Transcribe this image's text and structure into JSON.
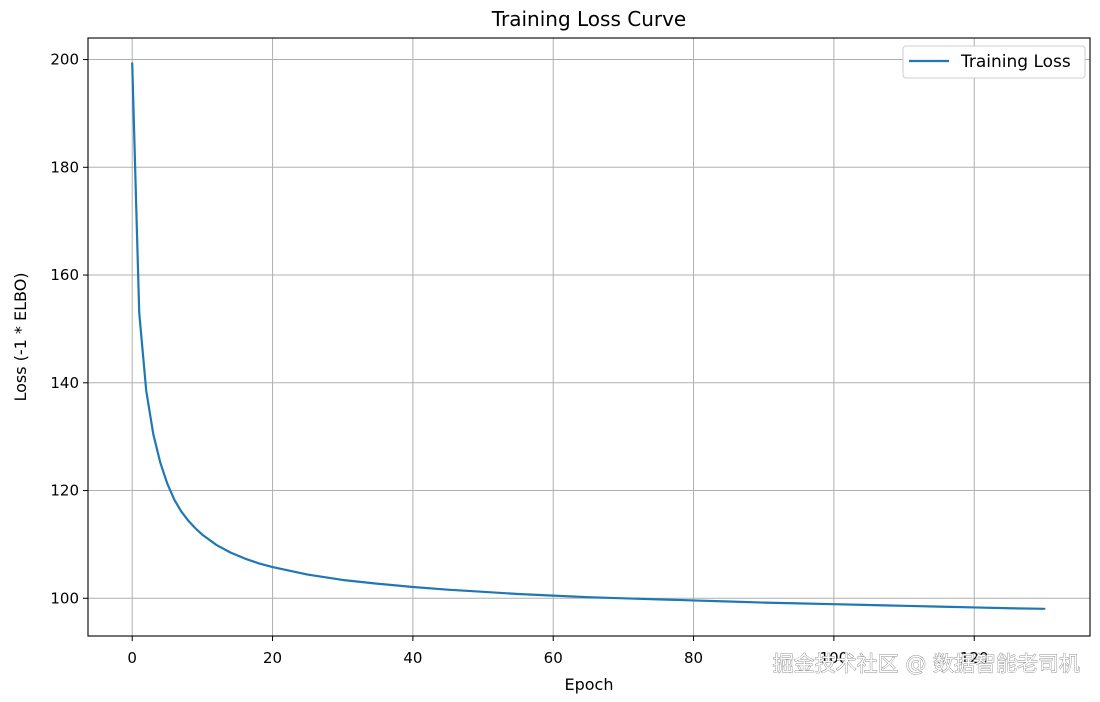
{
  "chart_data": {
    "type": "line",
    "title": "Training Loss Curve",
    "xlabel": "Epoch",
    "ylabel": "Loss (-1 * ELBO)",
    "xlim": [
      -6.3,
      136.5
    ],
    "ylim": [
      93,
      204
    ],
    "x_ticks": [
      0,
      20,
      40,
      60,
      80,
      100,
      120
    ],
    "y_ticks": [
      100,
      120,
      140,
      160,
      180,
      200
    ],
    "grid": true,
    "legend_position": "top-right",
    "series": [
      {
        "name": "Training Loss",
        "color": "#1f77b4",
        "x": [
          0,
          1,
          2,
          3,
          4,
          5,
          6,
          7,
          8,
          9,
          10,
          12,
          14,
          16,
          18,
          20,
          25,
          30,
          35,
          40,
          45,
          50,
          55,
          60,
          65,
          70,
          75,
          80,
          85,
          90,
          95,
          100,
          105,
          110,
          115,
          120,
          125,
          130
        ],
        "y": [
          199.3,
          153,
          138.5,
          130.5,
          125.2,
          121.3,
          118.3,
          116.1,
          114.4,
          113,
          111.8,
          109.9,
          108.5,
          107.4,
          106.5,
          105.8,
          104.4,
          103.4,
          102.7,
          102.1,
          101.6,
          101.2,
          100.8,
          100.5,
          100.2,
          100,
          99.8,
          99.6,
          99.4,
          99.2,
          99.05,
          98.9,
          98.75,
          98.6,
          98.45,
          98.3,
          98.15,
          98.05
        ]
      }
    ]
  },
  "watermark": "掘金技术社区 @ 数据智能老司机"
}
